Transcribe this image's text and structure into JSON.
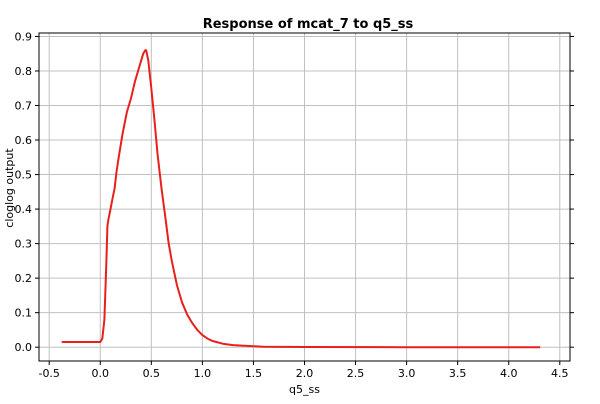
{
  "chart_data": {
    "type": "line",
    "title": "Response of mcat_7 to q5_ss",
    "xlabel": "q5_ss",
    "ylabel": "cloglog output",
    "xlim": [
      -0.6,
      4.6
    ],
    "ylim": [
      -0.04,
      0.91
    ],
    "grid": true,
    "legend": "none",
    "x_ticks": [
      -0.5,
      0.0,
      0.5,
      1.0,
      1.5,
      2.0,
      2.5,
      3.0,
      3.5,
      4.0,
      4.5
    ],
    "x_tick_labels": [
      "-0.5",
      "0.0",
      "0.5",
      "1.0",
      "1.5",
      "2.0",
      "2.5",
      "3.0",
      "3.5",
      "4.0",
      "4.5"
    ],
    "y_ticks": [
      0.0,
      0.1,
      0.2,
      0.3,
      0.4,
      0.5,
      0.6,
      0.7,
      0.8,
      0.9
    ],
    "y_tick_labels": [
      "0.0",
      "0.1",
      "0.2",
      "0.3",
      "0.4",
      "0.5",
      "0.6",
      "0.7",
      "0.8",
      "0.9"
    ],
    "series": [
      {
        "color": "#e8201c",
        "x": [
          -0.37,
          0.0,
          0.02,
          0.04,
          0.06,
          0.07,
          0.08,
          0.1,
          0.12,
          0.14,
          0.16,
          0.18,
          0.22,
          0.26,
          0.3,
          0.34,
          0.38,
          0.42,
          0.44,
          0.45,
          0.47,
          0.5,
          0.53,
          0.56,
          0.6,
          0.64,
          0.67,
          0.7,
          0.75,
          0.8,
          0.85,
          0.9,
          0.95,
          1.0,
          1.05,
          1.1,
          1.2,
          1.3,
          1.5,
          1.6,
          2.0,
          3.0,
          4.0,
          4.3
        ],
        "y": [
          0.015,
          0.015,
          0.025,
          0.08,
          0.25,
          0.35,
          0.37,
          0.4,
          0.43,
          0.46,
          0.51,
          0.55,
          0.62,
          0.68,
          0.72,
          0.77,
          0.81,
          0.85,
          0.86,
          0.86,
          0.83,
          0.75,
          0.66,
          0.56,
          0.46,
          0.37,
          0.3,
          0.25,
          0.18,
          0.13,
          0.095,
          0.07,
          0.05,
          0.035,
          0.025,
          0.018,
          0.01,
          0.006,
          0.003,
          0.001,
          0.0005,
          0.0,
          0.0,
          0.0
        ]
      }
    ]
  }
}
